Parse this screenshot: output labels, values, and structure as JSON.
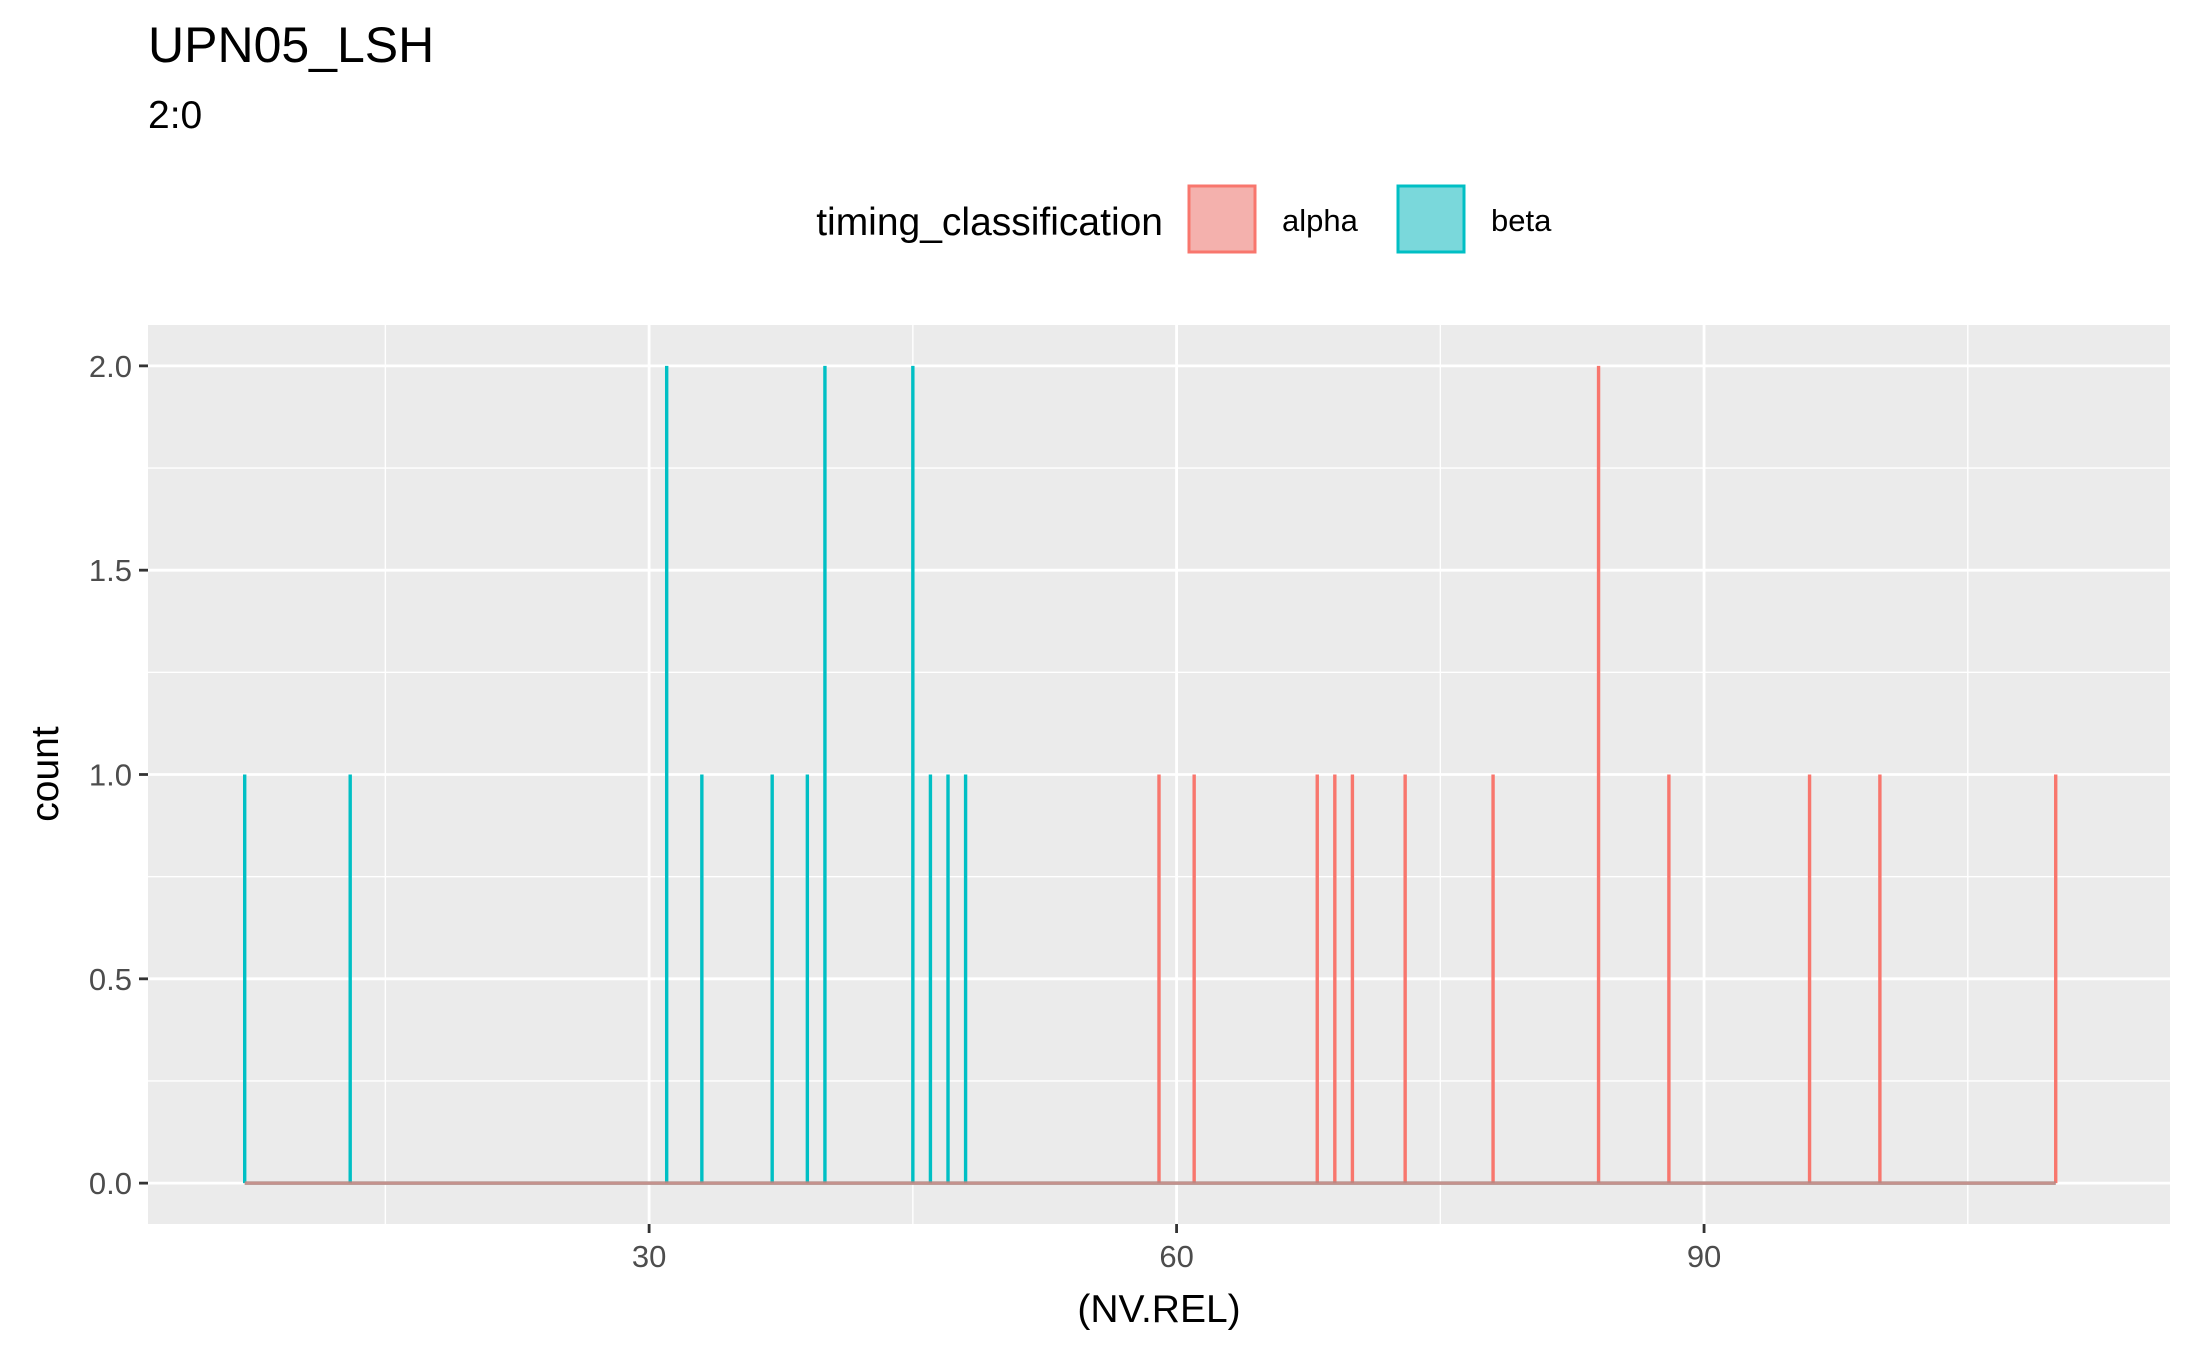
{
  "chart_data": {
    "type": "line",
    "title": "UPN05_LSH",
    "subtitle": "2:0",
    "xlabel": "(NV.REL)",
    "ylabel": "count",
    "xlim": [
      1.5,
      116.5
    ],
    "ylim": [
      -0.1,
      2.1
    ],
    "x_ticks": [
      30,
      60,
      90
    ],
    "y_ticks": [
      0.0,
      0.5,
      1.0,
      1.5,
      2.0
    ],
    "y_tick_labels": [
      "0.0",
      "0.5",
      "1.0",
      "1.5",
      "2.0"
    ],
    "grid": true,
    "legend": {
      "title": "timing_classification",
      "position": "top"
    },
    "series": [
      {
        "name": "alpha",
        "color": "#F8766D",
        "fill": "#F4B1AD",
        "points": [
          {
            "x": 59,
            "y": 1
          },
          {
            "x": 61,
            "y": 1
          },
          {
            "x": 68,
            "y": 1
          },
          {
            "x": 69,
            "y": 1
          },
          {
            "x": 70,
            "y": 1
          },
          {
            "x": 73,
            "y": 1
          },
          {
            "x": 78,
            "y": 1
          },
          {
            "x": 84,
            "y": 2
          },
          {
            "x": 88,
            "y": 1
          },
          {
            "x": 96,
            "y": 1
          },
          {
            "x": 100,
            "y": 1
          },
          {
            "x": 110,
            "y": 1
          }
        ]
      },
      {
        "name": "beta",
        "color": "#00BFC4",
        "fill": "#7AD8DB",
        "points": [
          {
            "x": 7,
            "y": 1
          },
          {
            "x": 13,
            "y": 1
          },
          {
            "x": 31,
            "y": 2
          },
          {
            "x": 33,
            "y": 1
          },
          {
            "x": 37,
            "y": 1
          },
          {
            "x": 39,
            "y": 1
          },
          {
            "x": 40,
            "y": 2
          },
          {
            "x": 45,
            "y": 2
          },
          {
            "x": 46,
            "y": 1
          },
          {
            "x": 47,
            "y": 1
          },
          {
            "x": 48,
            "y": 1
          }
        ]
      }
    ]
  }
}
